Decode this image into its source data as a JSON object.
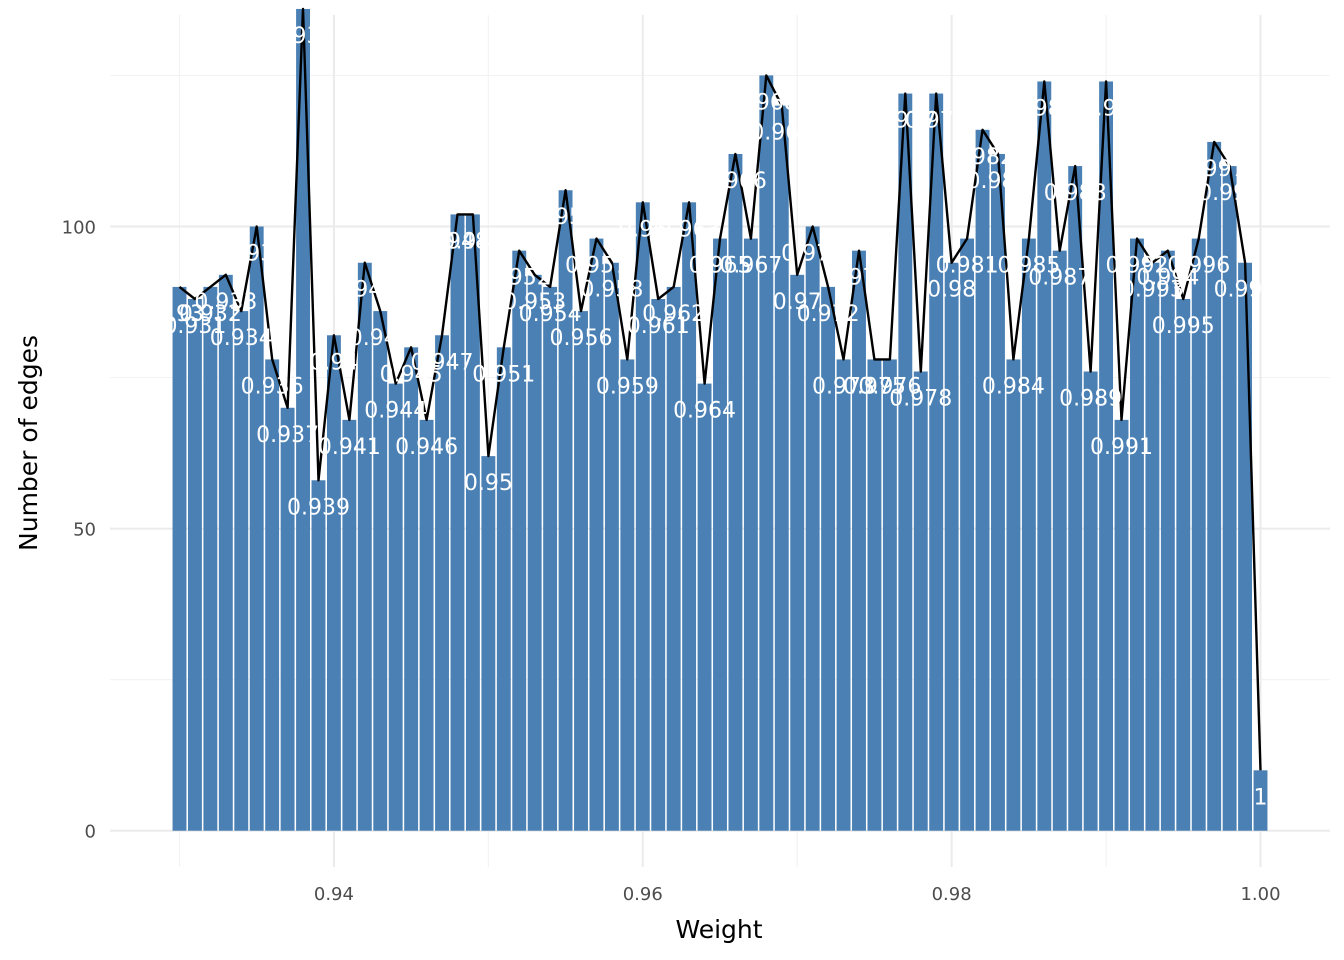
{
  "chart_data": {
    "type": "bar",
    "xlabel": "Weight",
    "ylabel": "Number of edges",
    "xlim": [
      0.9255,
      1.0045
    ],
    "ylim": [
      -6,
      135
    ],
    "x_ticks": [
      0.94,
      0.96,
      0.98,
      1.0
    ],
    "x_tick_labels": [
      "0.94",
      "0.96",
      "0.98",
      "1.00"
    ],
    "y_ticks": [
      0,
      50,
      100
    ],
    "y_tick_labels": [
      "0",
      "50",
      "100"
    ],
    "grid": true,
    "bar_color": "#4a80b4",
    "line_color": "#000000",
    "x": [
      0.93,
      0.931,
      0.932,
      0.933,
      0.934,
      0.935,
      0.936,
      0.937,
      0.938,
      0.939,
      0.94,
      0.941,
      0.942,
      0.943,
      0.944,
      0.945,
      0.946,
      0.947,
      0.948,
      0.949,
      0.95,
      0.951,
      0.952,
      0.953,
      0.954,
      0.955,
      0.956,
      0.957,
      0.958,
      0.959,
      0.96,
      0.961,
      0.962,
      0.963,
      0.964,
      0.965,
      0.966,
      0.967,
      0.968,
      0.969,
      0.97,
      0.971,
      0.972,
      0.973,
      0.974,
      0.975,
      0.976,
      0.977,
      0.978,
      0.979,
      0.98,
      0.981,
      0.982,
      0.983,
      0.984,
      0.985,
      0.986,
      0.987,
      0.988,
      0.989,
      0.99,
      0.991,
      0.992,
      0.993,
      0.994,
      0.995,
      0.996,
      0.997,
      0.998,
      0.999,
      1.0
    ],
    "values": [
      90,
      88,
      90,
      92,
      86,
      100,
      78,
      70,
      136,
      58,
      82,
      68,
      94,
      86,
      74,
      80,
      68,
      82,
      102,
      102,
      62,
      80,
      96,
      92,
      90,
      106,
      86,
      98,
      94,
      78,
      104,
      88,
      90,
      104,
      74,
      98,
      112,
      98,
      125,
      120,
      92,
      100,
      90,
      78,
      96,
      78,
      78,
      122,
      76,
      122,
      94,
      98,
      116,
      112,
      78,
      98,
      124,
      96,
      110,
      76,
      124,
      68,
      98,
      94,
      96,
      88,
      98,
      114,
      110,
      94,
      10
    ],
    "labels": [
      "0.93",
      "0.931",
      "0.932",
      "0.933",
      "0.934",
      "0.935",
      "0.936",
      "0.937",
      "0.938",
      "0.939",
      "0.94",
      "0.941",
      "0.942",
      "0.943",
      "0.944",
      "0.945",
      "0.946",
      "0.947",
      "0.948",
      "0.949",
      "0.95",
      "0.951",
      "0.952",
      "0.953",
      "0.954",
      "0.955",
      "0.956",
      "0.957",
      "0.958",
      "0.959",
      "0.96",
      "0.961",
      "0.962",
      "0.963",
      "0.964",
      "0.965",
      "0.966",
      "0.967",
      "0.968",
      "0.969",
      "0.97",
      "0.971",
      "0.972",
      "0.973",
      "0.974",
      "0.975",
      "0.976",
      "0.977",
      "0.978",
      "0.979",
      "0.98",
      "0.981",
      "0.982",
      "0.983",
      "0.984",
      "0.985",
      "0.986",
      "0.987",
      "0.988",
      "0.989",
      "0.99",
      "0.991",
      "0.992",
      "0.993",
      "0.994",
      "0.995",
      "0.996",
      "0.997",
      "0.998",
      "0.999",
      "1"
    ]
  }
}
